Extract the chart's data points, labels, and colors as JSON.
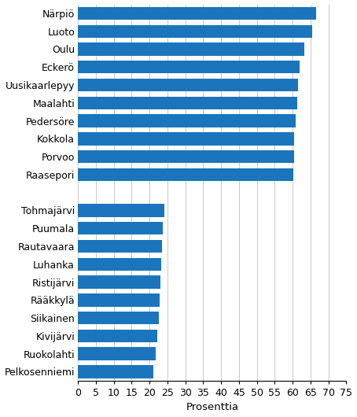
{
  "categories": [
    "Närpiö",
    "Luoto",
    "Oulu",
    "Eckerö",
    "Uusikaarlepyy",
    "Maalahti",
    "Pedersöre",
    "Kokkola",
    "Porvoo",
    "Raasepori",
    "",
    "Tohmajärvi",
    "Puumala",
    "Rautavaara",
    "Luhanka",
    "Ristijärvi",
    "Rääkkylä",
    "Siikainen",
    "Kivijärvi",
    "Ruokolahti",
    "Pelkosenniemi"
  ],
  "values": [
    66.5,
    65.5,
    63.2,
    62.0,
    61.5,
    61.2,
    60.8,
    60.5,
    60.3,
    60.2,
    0,
    24.2,
    23.7,
    23.5,
    23.3,
    23.1,
    22.8,
    22.6,
    22.2,
    21.8,
    21.0
  ],
  "bar_color": "#1a75bc",
  "xlabel": "Prosenttia",
  "xlim": [
    0,
    75
  ],
  "xticks": [
    0,
    5,
    10,
    15,
    20,
    25,
    30,
    35,
    40,
    45,
    50,
    55,
    60,
    65,
    70,
    75
  ],
  "bar_height": 0.72,
  "grid_color": "#c0c0c0",
  "background_color": "#ffffff",
  "label_fontsize": 9,
  "xlabel_fontsize": 9.5
}
